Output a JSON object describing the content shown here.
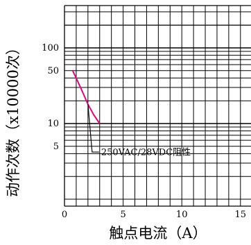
{
  "chart_data": {
    "type": "line",
    "title": "",
    "xlabel": "触点电流（A）",
    "ylabel": "动作次数（x10000次）",
    "xlim": [
      0,
      16
    ],
    "ylim": [
      1,
      300
    ],
    "y_scale": "log",
    "x_ticks": [
      0,
      5,
      10,
      15
    ],
    "y_ticks": [
      5,
      10,
      50,
      100
    ],
    "grid": true,
    "series": [
      {
        "name": "250VAC/28VDC阻性",
        "color": "#e6007e",
        "x": [
          0.7,
          1.0,
          1.5,
          2.0,
          2.5,
          3.0
        ],
        "y": [
          50,
          40,
          27,
          18,
          13,
          10
        ]
      }
    ],
    "annotations": [
      {
        "text": "250VAC/28VDC阻性",
        "series": 0,
        "x": 2.0,
        "y": 18
      }
    ]
  }
}
